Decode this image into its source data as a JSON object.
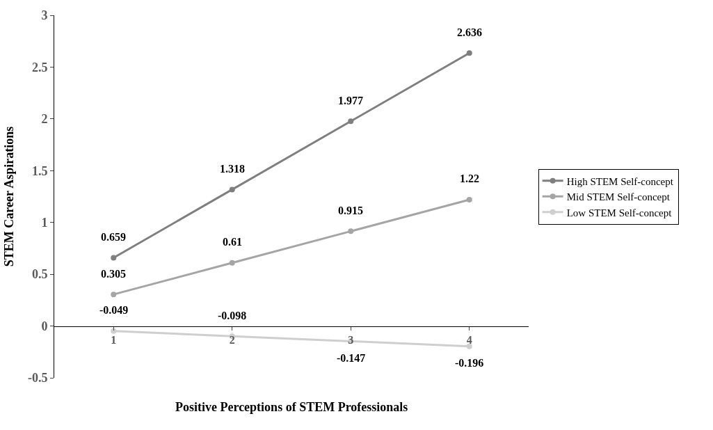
{
  "chart_data": {
    "type": "line",
    "xlabel": "Positive Perceptions of STEM Professionals",
    "ylabel": "STEM Career Aspirations",
    "categories": [
      "1",
      "2",
      "3",
      "4"
    ],
    "series": [
      {
        "name": "High STEM Self-concept",
        "color": "#7f7f7f",
        "values": [
          0.659,
          1.318,
          1.977,
          2.636
        ]
      },
      {
        "name": "Mid STEM Self-concept",
        "color": "#a5a5a5",
        "values": [
          0.305,
          0.61,
          0.915,
          1.22
        ]
      },
      {
        "name": "Low STEM Self-concept",
        "color": "#cfcfcf",
        "values": [
          -0.049,
          -0.098,
          -0.147,
          -0.196
        ]
      }
    ],
    "ylim": [
      -0.5,
      3
    ],
    "yticks": [
      -0.5,
      0,
      0.5,
      1,
      1.5,
      2,
      2.5,
      3
    ],
    "legend": "right",
    "marker": "circle",
    "line_style": "solid",
    "data_labels": true
  }
}
